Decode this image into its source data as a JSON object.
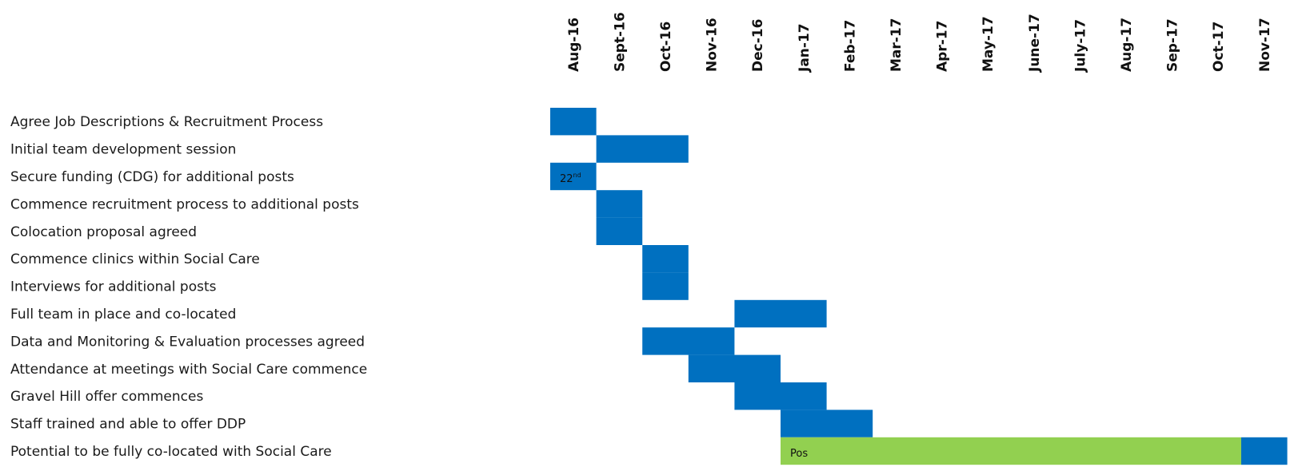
{
  "chart_data": {
    "type": "gantt",
    "title": "",
    "months": [
      "Aug-16",
      "Sept-16",
      "Oct-16",
      "Nov-16",
      "Dec-16",
      "Jan-17",
      "Feb-17",
      "Mar-17",
      "Apr-17",
      "May-17",
      "June-17",
      "July-17",
      "Aug-17",
      "Sep-17",
      "Oct-17",
      "Nov-17"
    ],
    "tasks": [
      {
        "name": "Agree Job Descriptions & Recruitment Process",
        "segments": [
          {
            "start": "Aug-16",
            "end": "Aug-16",
            "color": "#0070C0"
          }
        ]
      },
      {
        "name": "Initial team development session",
        "segments": [
          {
            "start": "Sept-16",
            "end": "Oct-16",
            "color": "#0070C0"
          }
        ]
      },
      {
        "name": "Secure funding (CDG) for additional posts",
        "segments": [
          {
            "start": "Aug-16",
            "end": "Aug-16",
            "color": "#0070C0",
            "note": "22",
            "note_sup": "nd"
          }
        ]
      },
      {
        "name": "Commence recruitment process to additional posts",
        "segments": [
          {
            "start": "Sept-16",
            "end": "Sept-16",
            "color": "#0070C0"
          }
        ]
      },
      {
        "name": "Colocation proposal agreed",
        "segments": [
          {
            "start": "Sept-16",
            "end": "Sept-16",
            "color": "#0070C0"
          }
        ]
      },
      {
        "name": "Commence clinics within Social Care",
        "segments": [
          {
            "start": "Oct-16",
            "end": "Oct-16",
            "color": "#0070C0"
          }
        ]
      },
      {
        "name": "Interviews for additional posts",
        "segments": [
          {
            "start": "Oct-16",
            "end": "Oct-16",
            "color": "#0070C0"
          }
        ]
      },
      {
        "name": "Full team in place and co-located",
        "segments": [
          {
            "start": "Dec-16",
            "end": "Jan-17",
            "color": "#0070C0"
          }
        ]
      },
      {
        "name": "Data and Monitoring & Evaluation processes agreed",
        "segments": [
          {
            "start": "Oct-16",
            "end": "Nov-16",
            "color": "#0070C0"
          }
        ]
      },
      {
        "name": "Attendance at meetings with Social Care commence",
        "segments": [
          {
            "start": "Nov-16",
            "end": "Dec-16",
            "color": "#0070C0"
          }
        ]
      },
      {
        "name": "Gravel Hill offer commences",
        "segments": [
          {
            "start": "Dec-16",
            "end": "Jan-17",
            "color": "#0070C0"
          }
        ]
      },
      {
        "name": "Staff trained and able to offer DDP",
        "segments": [
          {
            "start": "Jan-17",
            "end": "Feb-17",
            "color": "#0070C0"
          }
        ]
      },
      {
        "name": "Potential to be fully co-located with Social Care",
        "segments": [
          {
            "start": "Jan-17",
            "end": "Oct-17",
            "color": "#92D050",
            "note": "Pos"
          },
          {
            "start": "Nov-17",
            "end": "Nov-17",
            "color": "#0070C0"
          }
        ]
      }
    ]
  }
}
